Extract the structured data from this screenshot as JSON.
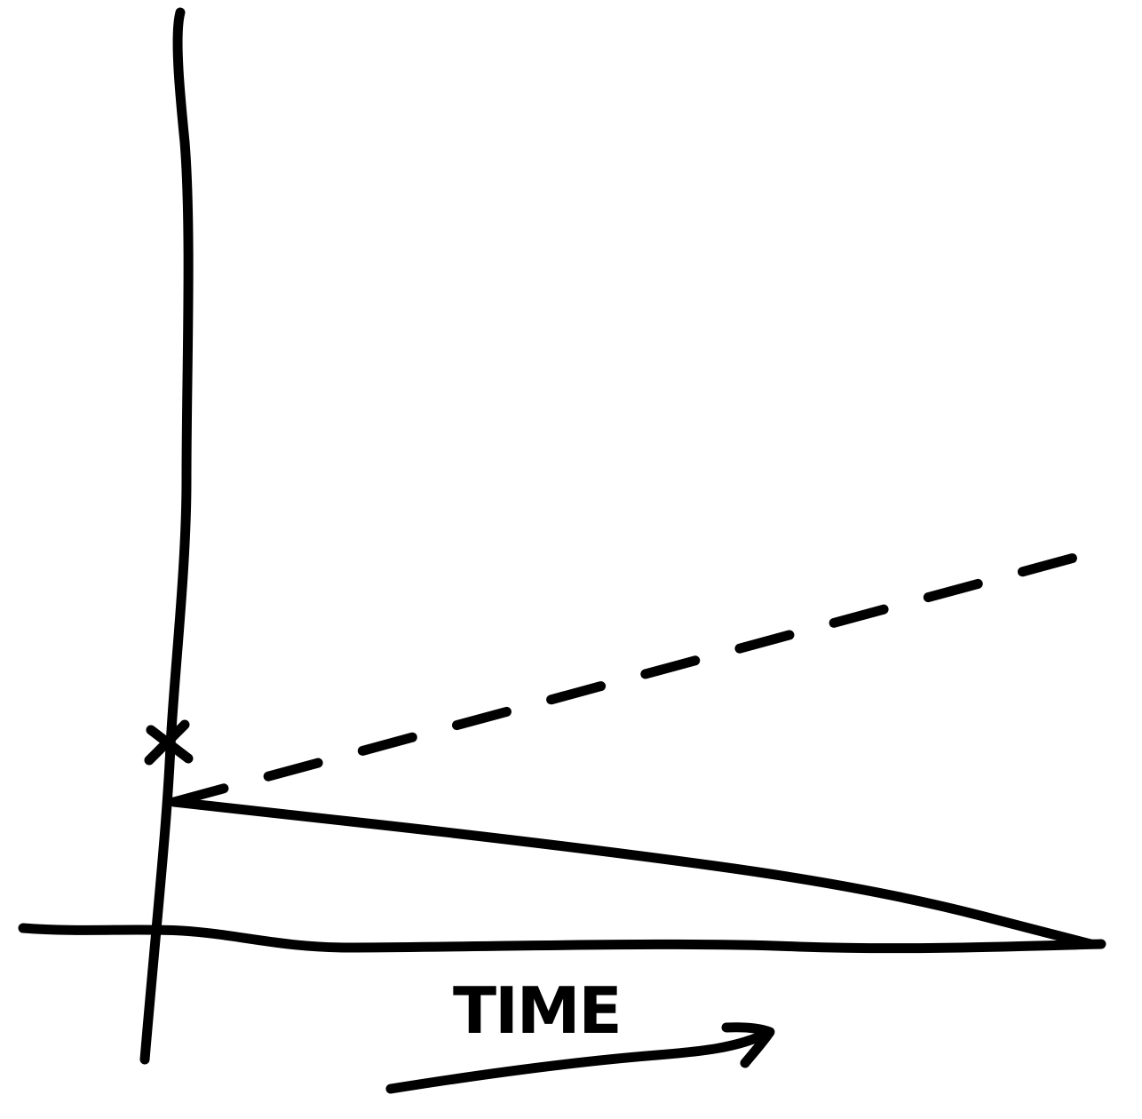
{
  "colors": {
    "ink": "#000000",
    "background": "#ffffff"
  },
  "chart_data": {
    "type": "line",
    "title": "",
    "xlabel": "TIME",
    "ylabel": "",
    "hand_drawn": true,
    "xlim": [
      0,
      10
    ],
    "ylim": [
      0,
      10
    ],
    "grid": false,
    "x_axis_arrow": "right",
    "start_marker": "x",
    "series": [
      {
        "style": "dashed",
        "trend": "increasing",
        "points": [
          [
            0,
            2
          ],
          [
            10,
            5.5
          ]
        ]
      },
      {
        "style": "solid",
        "trend": "decreasing",
        "points": [
          [
            0,
            2
          ],
          [
            4.2,
            1.4
          ],
          [
            7.6,
            0.8
          ],
          [
            10,
            0
          ]
        ]
      }
    ]
  }
}
